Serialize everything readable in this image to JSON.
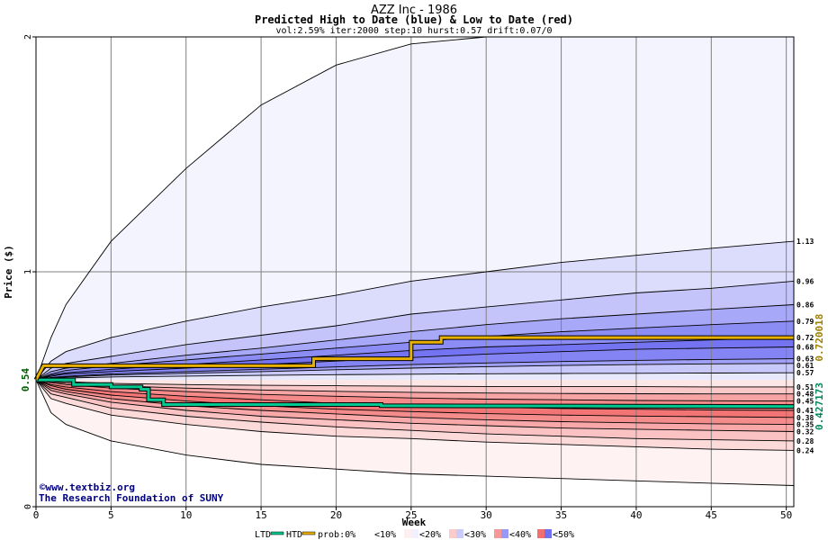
{
  "header": {
    "title": "AZZ Inc - 1986",
    "subtitle": "Predicted High to Date (blue) &  Low to Date (red)",
    "params": "vol:2.59% iter:2000 step:10 hurst:0.57 drift:0.07/0"
  },
  "credits": {
    "site": "©www.textbiz.org",
    "org": "The Research Foundation of SUNY"
  },
  "legend": {
    "ltd": "LTD",
    "htd": "HTD",
    "prob": "prob:0%",
    "p10": "<10%",
    "p20": "<20%",
    "p30": "<30%",
    "p40": "<40%",
    "p50": "<50%"
  },
  "colors": {
    "ltd_line": "#00c890",
    "htd_line": "#e8b000",
    "right_htd_text": "#a08000",
    "right_ltd_text": "#008a60",
    "start_text": "#006000"
  },
  "chart_data": {
    "type": "area",
    "xlabel": "Week",
    "ylabel": "Price ($)",
    "xlim": [
      0,
      50.5
    ],
    "ylim": [
      0,
      2
    ],
    "x_ticks": [
      0,
      5,
      10,
      15,
      20,
      25,
      30,
      35,
      40,
      45,
      50
    ],
    "y_ticks": [
      0,
      1,
      2
    ],
    "start_price": 0.54,
    "start_label": "0.54",
    "x": [
      0,
      1,
      2,
      5,
      10,
      15,
      20,
      25,
      30,
      35,
      40,
      45,
      50.5
    ],
    "upper_bands": [
      {
        "label": "",
        "values": [
          0.54,
          0.72,
          0.86,
          1.13,
          1.44,
          1.71,
          1.88,
          1.97,
          2.03,
          2.08,
          2.12,
          2.15,
          2.18
        ]
      },
      {
        "label": "1.13",
        "values": [
          0.54,
          0.62,
          0.66,
          0.72,
          0.79,
          0.85,
          0.9,
          0.96,
          1.0,
          1.04,
          1.07,
          1.1,
          1.13
        ]
      },
      {
        "label": "0.96",
        "values": [
          0.54,
          0.59,
          0.61,
          0.64,
          0.69,
          0.73,
          0.77,
          0.82,
          0.85,
          0.88,
          0.91,
          0.93,
          0.96
        ]
      },
      {
        "label": "0.86",
        "values": [
          0.54,
          0.575,
          0.59,
          0.61,
          0.645,
          0.675,
          0.71,
          0.745,
          0.775,
          0.8,
          0.82,
          0.84,
          0.86
        ]
      },
      {
        "label": "0.79",
        "values": [
          0.54,
          0.565,
          0.58,
          0.6,
          0.625,
          0.65,
          0.675,
          0.7,
          0.725,
          0.745,
          0.76,
          0.775,
          0.79
        ]
      },
      {
        "label": "0.72",
        "values": [
          0.54,
          0.56,
          0.57,
          0.585,
          0.605,
          0.625,
          0.645,
          0.665,
          0.68,
          0.69,
          0.7,
          0.71,
          0.72
        ]
      },
      {
        "label": "0.68",
        "values": [
          0.54,
          0.555,
          0.565,
          0.575,
          0.59,
          0.605,
          0.62,
          0.635,
          0.65,
          0.66,
          0.67,
          0.675,
          0.68
        ]
      },
      {
        "label": "0.63",
        "values": [
          0.54,
          0.55,
          0.555,
          0.565,
          0.575,
          0.585,
          0.595,
          0.605,
          0.612,
          0.618,
          0.623,
          0.627,
          0.63
        ]
      },
      {
        "label": "0.61",
        "values": [
          0.54,
          0.548,
          0.552,
          0.56,
          0.568,
          0.575,
          0.583,
          0.59,
          0.596,
          0.601,
          0.605,
          0.608,
          0.61
        ]
      },
      {
        "label": "0.57",
        "values": [
          0.54,
          0.545,
          0.548,
          0.552,
          0.556,
          0.559,
          0.562,
          0.564,
          0.566,
          0.567,
          0.568,
          0.569,
          0.57
        ]
      }
    ],
    "lower_bands": [
      {
        "label": "",
        "values": [
          0.54,
          0.4,
          0.35,
          0.28,
          0.22,
          0.18,
          0.16,
          0.14,
          0.13,
          0.12,
          0.11,
          0.1,
          0.09
        ]
      },
      {
        "label": "0.24",
        "values": [
          0.54,
          0.46,
          0.44,
          0.39,
          0.35,
          0.32,
          0.3,
          0.29,
          0.275,
          0.265,
          0.255,
          0.245,
          0.24
        ]
      },
      {
        "label": "0.28",
        "values": [
          0.54,
          0.48,
          0.465,
          0.42,
          0.385,
          0.36,
          0.34,
          0.325,
          0.31,
          0.3,
          0.29,
          0.285,
          0.28
        ]
      },
      {
        "label": "0.32",
        "values": [
          0.54,
          0.495,
          0.48,
          0.445,
          0.41,
          0.385,
          0.37,
          0.355,
          0.345,
          0.335,
          0.33,
          0.325,
          0.32
        ]
      },
      {
        "label": "0.35",
        "values": [
          0.54,
          0.505,
          0.49,
          0.46,
          0.43,
          0.41,
          0.395,
          0.38,
          0.37,
          0.362,
          0.357,
          0.353,
          0.35
        ]
      },
      {
        "label": "0.38",
        "values": [
          0.54,
          0.515,
          0.5,
          0.475,
          0.45,
          0.43,
          0.415,
          0.405,
          0.396,
          0.39,
          0.386,
          0.383,
          0.38
        ]
      },
      {
        "label": "0.41",
        "values": [
          0.54,
          0.52,
          0.51,
          0.49,
          0.47,
          0.455,
          0.44,
          0.43,
          0.424,
          0.418,
          0.415,
          0.412,
          0.41
        ]
      },
      {
        "label": "0.45",
        "values": [
          0.54,
          0.528,
          0.52,
          0.505,
          0.49,
          0.478,
          0.47,
          0.463,
          0.458,
          0.455,
          0.452,
          0.451,
          0.45
        ]
      },
      {
        "label": "0.48",
        "values": [
          0.54,
          0.532,
          0.526,
          0.515,
          0.505,
          0.497,
          0.491,
          0.487,
          0.484,
          0.482,
          0.481,
          0.48,
          0.48
        ]
      },
      {
        "label": "0.51",
        "values": [
          0.54,
          0.536,
          0.532,
          0.525,
          0.52,
          0.517,
          0.515,
          0.513,
          0.512,
          0.511,
          0.511,
          0.51,
          0.51
        ]
      }
    ],
    "htd_label": "0.720018",
    "ltd_label": "0.427173",
    "htd_path": [
      [
        0,
        0.54
      ],
      [
        0.5,
        0.6
      ],
      [
        18.5,
        0.6
      ],
      [
        18.5,
        0.63
      ],
      [
        25,
        0.63
      ],
      [
        25,
        0.7
      ],
      [
        27,
        0.7
      ],
      [
        27,
        0.72
      ],
      [
        50.5,
        0.72
      ]
    ],
    "ltd_path": [
      [
        0,
        0.54
      ],
      [
        2.5,
        0.54
      ],
      [
        2.5,
        0.52
      ],
      [
        5,
        0.52
      ],
      [
        5,
        0.51
      ],
      [
        7,
        0.51
      ],
      [
        7,
        0.5
      ],
      [
        7.5,
        0.5
      ],
      [
        7.5,
        0.455
      ],
      [
        8.5,
        0.455
      ],
      [
        8.5,
        0.435
      ],
      [
        23,
        0.435
      ],
      [
        23,
        0.43
      ],
      [
        50.5,
        0.427
      ]
    ]
  }
}
